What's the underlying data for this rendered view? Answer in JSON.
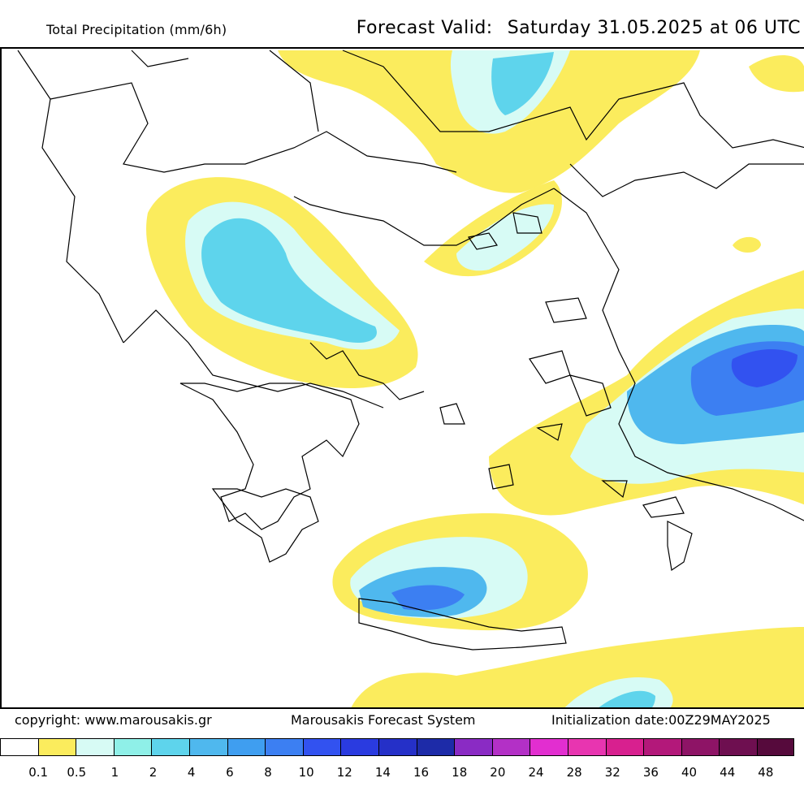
{
  "header": {
    "title": "Total Precipitation (mm/6h)",
    "valid_label": "Forecast Valid:",
    "valid_time": "Saturday 31.05.2025 at 06 UTC"
  },
  "footer": {
    "copyright": "copyright: www.marousakis.gr",
    "system": "Marousakis Forecast System",
    "init": "Initialization date:00Z29MAY2025"
  },
  "legend": {
    "colors": [
      "#ffffff",
      "#fbec5d",
      "#d7fbf5",
      "#8ff0e8",
      "#5ed4ec",
      "#4fb8ee",
      "#3f9ef0",
      "#3c7ff2",
      "#3252f0",
      "#2a3be0",
      "#2530c8",
      "#1d2ba8",
      "#8a2bc4",
      "#b330c6",
      "#e22ed0",
      "#e835b0",
      "#d8208f",
      "#b3187a",
      "#8e1466",
      "#6e0f50",
      "#560a3c"
    ],
    "ticks": [
      "0.1",
      "0.5",
      "1",
      "2",
      "4",
      "6",
      "8",
      "10",
      "12",
      "14",
      "16",
      "18",
      "20",
      "24",
      "28",
      "32",
      "36",
      "40",
      "44",
      "48"
    ]
  },
  "map": {
    "precip_colors": {
      "light": "#fbec5d",
      "l1": "#d7fbf5",
      "l2": "#8ff0e8",
      "l3": "#5ed4ec",
      "l4": "#4fb8ee",
      "l5": "#3f9ef0",
      "l6": "#3c7ff2",
      "l7": "#3252f0"
    }
  }
}
